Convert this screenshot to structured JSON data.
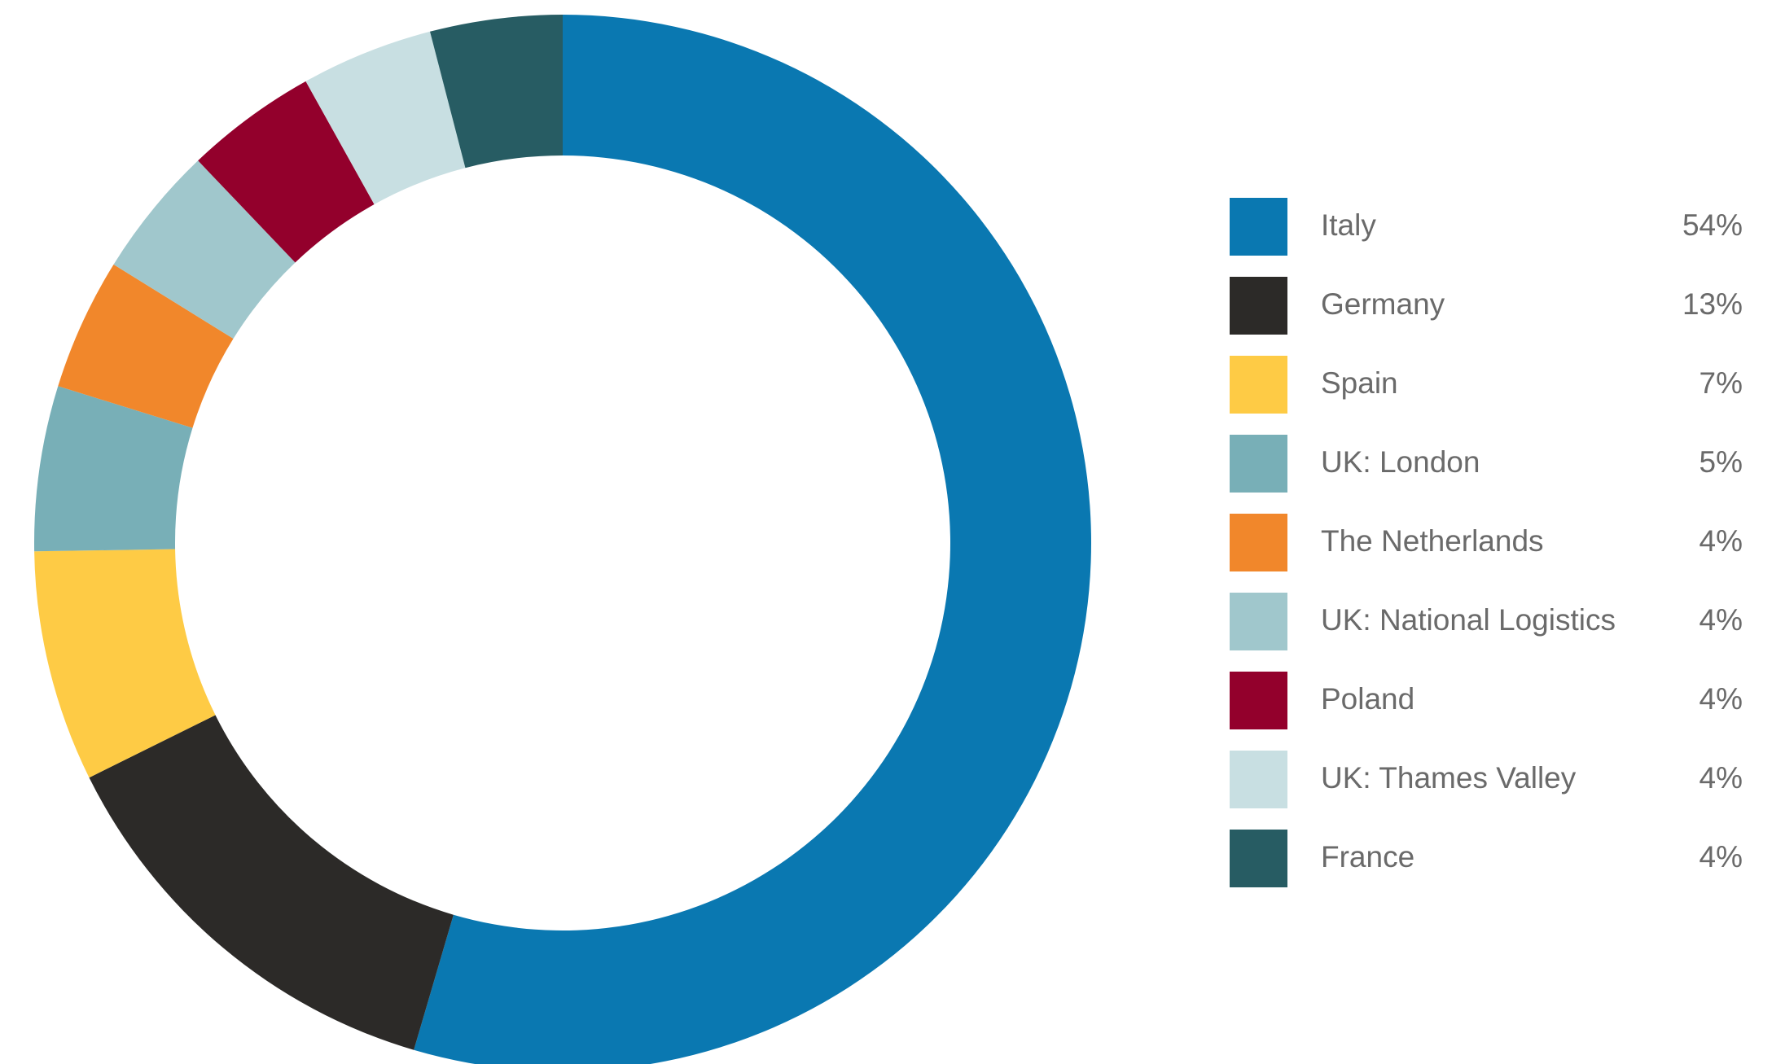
{
  "chart_data": {
    "type": "pie",
    "variant": "donut",
    "title": "",
    "categories": [
      "Italy",
      "Germany",
      "Spain",
      "UK: London",
      "The Netherlands",
      "UK: National Logistics",
      "Poland",
      "UK: Thames Valley",
      "France"
    ],
    "values": [
      54,
      13,
      7,
      5,
      4,
      4,
      4,
      4,
      4
    ],
    "value_labels": [
      "54%",
      "13%",
      "7%",
      "5%",
      "4%",
      "4%",
      "4%",
      "4%",
      "4%"
    ],
    "unit": "%",
    "colors": [
      "#0a78b1",
      "#2c2a28",
      "#fecb45",
      "#78afb7",
      "#f1872b",
      "#a0c7cc",
      "#93002c",
      "#c8dfe2",
      "#275c63"
    ],
    "legend_position": "right",
    "start_angle": "top",
    "direction": "clockwise"
  }
}
